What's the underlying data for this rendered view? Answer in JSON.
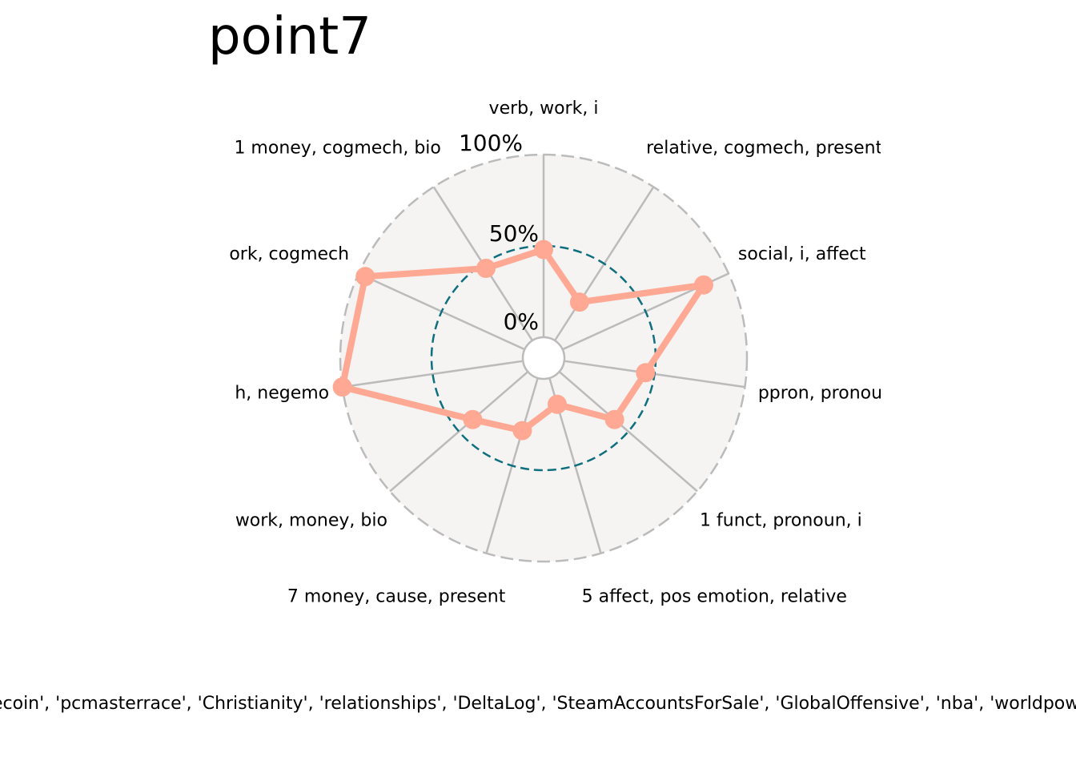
{
  "title": "point7",
  "footer": "'RocketLeagueExchange', 'Bitcoin', 'dogecoin', 'pcmasterrace', 'Christianity', 'relationships', 'DeltaLog', 'SteamAccountsForSale', 'GlobalOffensive', 'nba', 'worldpowers', 'hardwareswap', 'noveltranslations'",
  "chart_data": {
    "type": "radar",
    "title": "point7",
    "axes": [
      "verb, work, i",
      "relative, cogmech, present",
      "social, i, affect",
      "ppron, pronoun",
      "1 funct, pronoun, i",
      "5 affect, pos emotion, relative",
      "7 money, cause, present",
      "work, money, bio",
      "h, negemo",
      "ork, cogmech",
      "1 money, cogmech, bio"
    ],
    "ring_labels": [
      "0%",
      "50%",
      "100%"
    ],
    "rlim": [
      0,
      100
    ],
    "series": [
      {
        "values": [
          48,
          25,
          85,
          45,
          40,
          15,
          30,
          40,
          100,
          96,
          47
        ]
      }
    ],
    "colors": {
      "series": "#FFA994",
      "background": "#F5F4F3",
      "spokes": "#BBBBBB",
      "outer_ring": "#BBBBBB",
      "mid_ring": "#0F6F7F",
      "inner_circle": "#BBBBBB"
    }
  }
}
